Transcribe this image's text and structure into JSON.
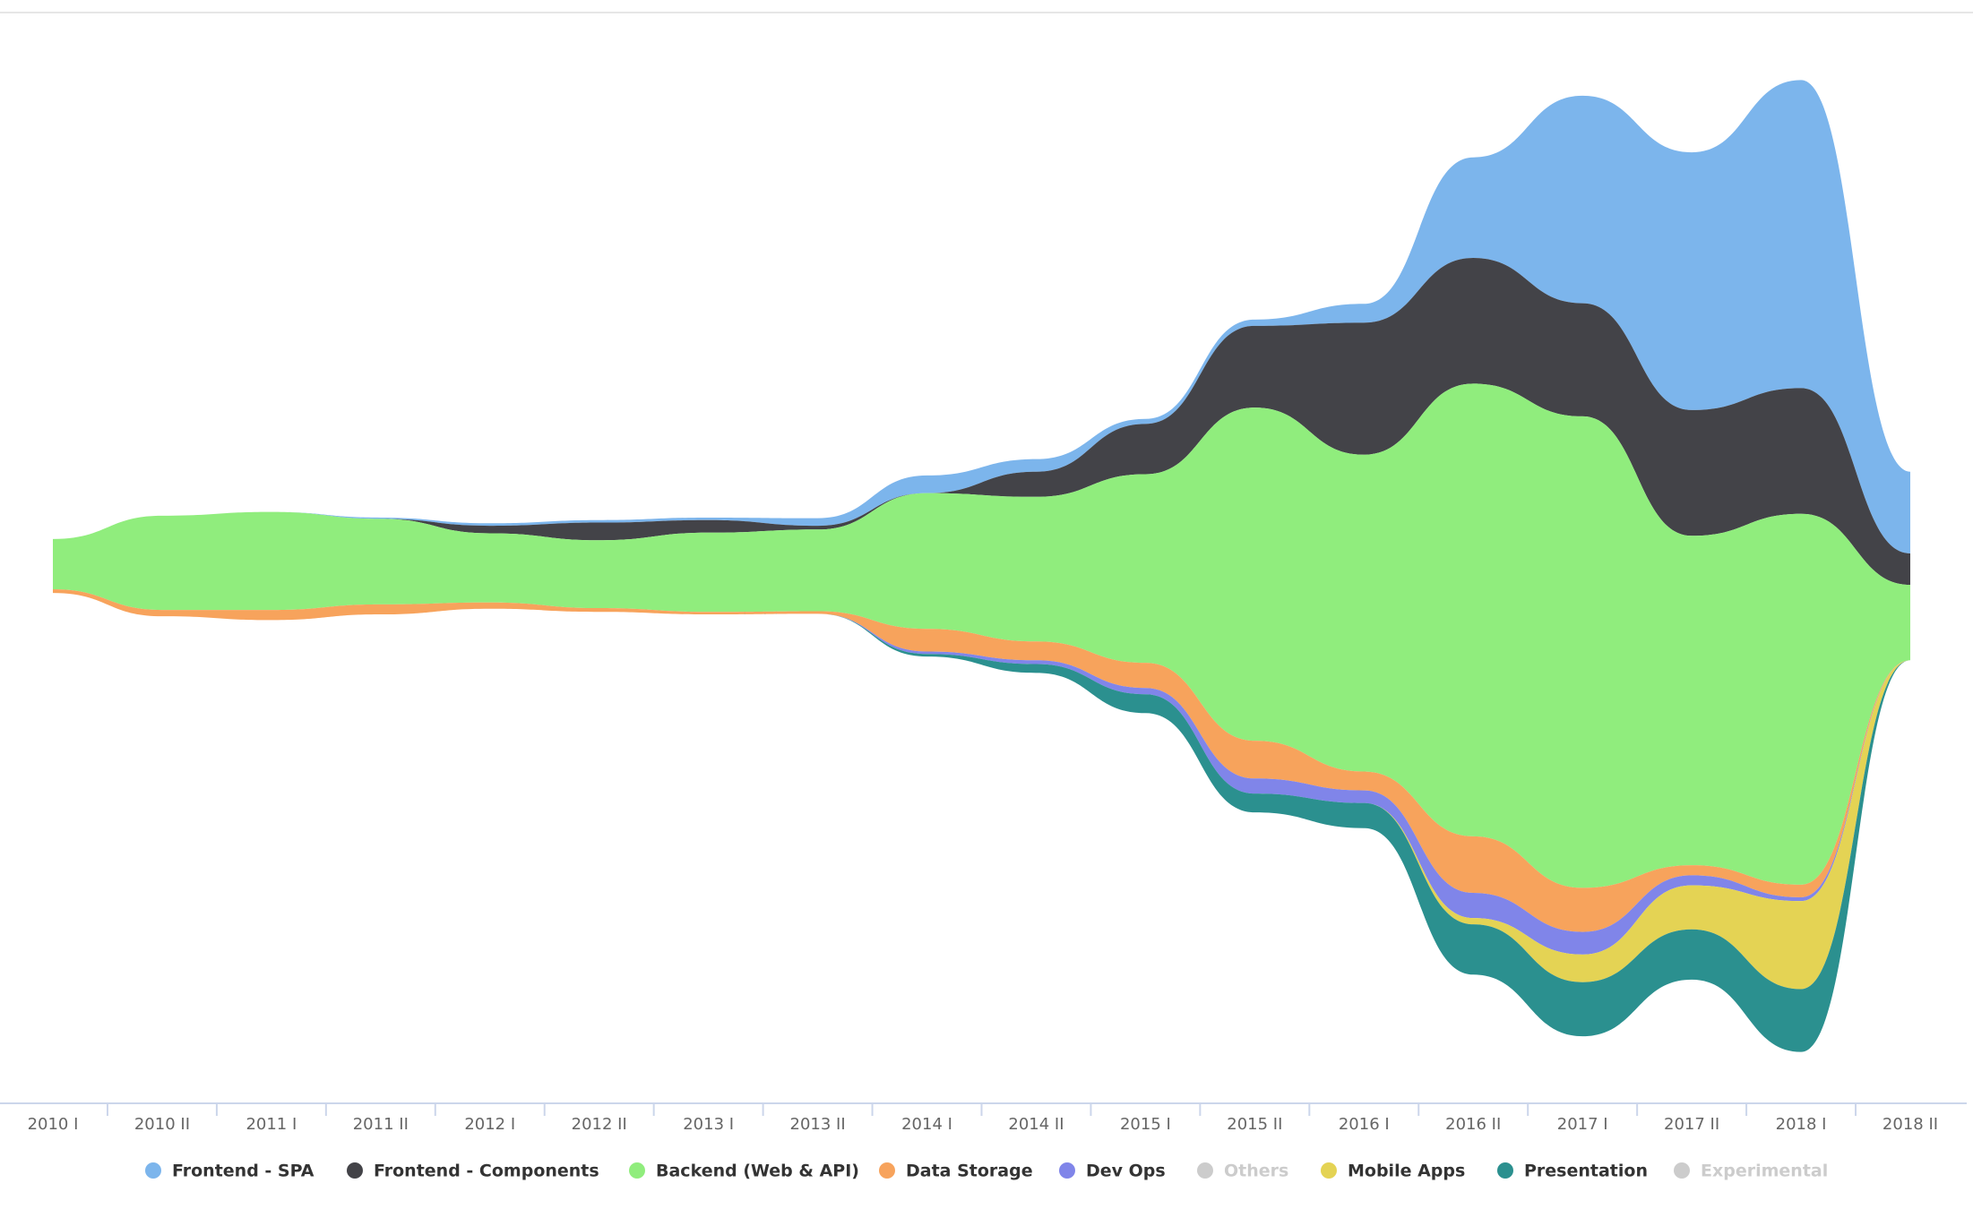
{
  "chart_data": {
    "type": "streamgraph",
    "categories": [
      "2010 I",
      "2010 II",
      "2011 I",
      "2011 II",
      "2012 I",
      "2012 II",
      "2013 I",
      "2013 II",
      "2014 I",
      "2014 II",
      "2015 I",
      "2015 II",
      "2016 I",
      "2016 II",
      "2017 I",
      "2017 II",
      "2018 I",
      "2018 II"
    ],
    "series": [
      {
        "name": "Frontend - SPA",
        "color": "#7cb5ec",
        "values": [
          0,
          0,
          0,
          1,
          2,
          2,
          2,
          6,
          14,
          10,
          4,
          5,
          15,
          80,
          165,
          205,
          245,
          65
        ]
      },
      {
        "name": "Frontend - Components",
        "color": "#434348",
        "values": [
          0,
          0,
          0,
          0,
          6,
          14,
          10,
          3,
          0,
          20,
          40,
          65,
          105,
          100,
          90,
          100,
          100,
          25
        ]
      },
      {
        "name": "Backend (Web & API)",
        "color": "#90ed7d",
        "values": [
          40,
          75,
          78,
          68,
          55,
          54,
          63,
          65,
          108,
          115,
          150,
          265,
          252,
          360,
          375,
          262,
          295,
          60
        ]
      },
      {
        "name": "Data Storage",
        "color": "#f7a35c",
        "values": [
          3,
          5,
          8,
          8,
          5,
          3,
          2,
          2,
          18,
          15,
          20,
          30,
          15,
          45,
          35,
          8,
          10,
          0
        ]
      },
      {
        "name": "Dev Ops",
        "color": "#8085e9",
        "values": [
          0,
          0,
          0,
          0,
          0,
          0,
          0,
          0,
          2,
          3,
          5,
          12,
          10,
          20,
          18,
          8,
          3,
          0
        ]
      },
      {
        "name": "Others",
        "color": "#cccccc",
        "hidden": true
      },
      {
        "name": "Mobile Apps",
        "color": "#e4d354",
        "values": [
          0,
          0,
          0,
          0,
          0,
          0,
          0,
          0,
          0,
          0,
          0,
          0,
          0,
          5,
          22,
          35,
          70,
          0
        ]
      },
      {
        "name": "Presentation",
        "color": "#2b908f",
        "values": [
          0,
          0,
          0,
          0,
          0,
          0,
          0,
          0,
          2,
          7,
          15,
          15,
          20,
          40,
          43,
          40,
          50,
          0
        ]
      },
      {
        "name": "Experimental",
        "color": "#cccccc",
        "hidden": true
      }
    ]
  }
}
